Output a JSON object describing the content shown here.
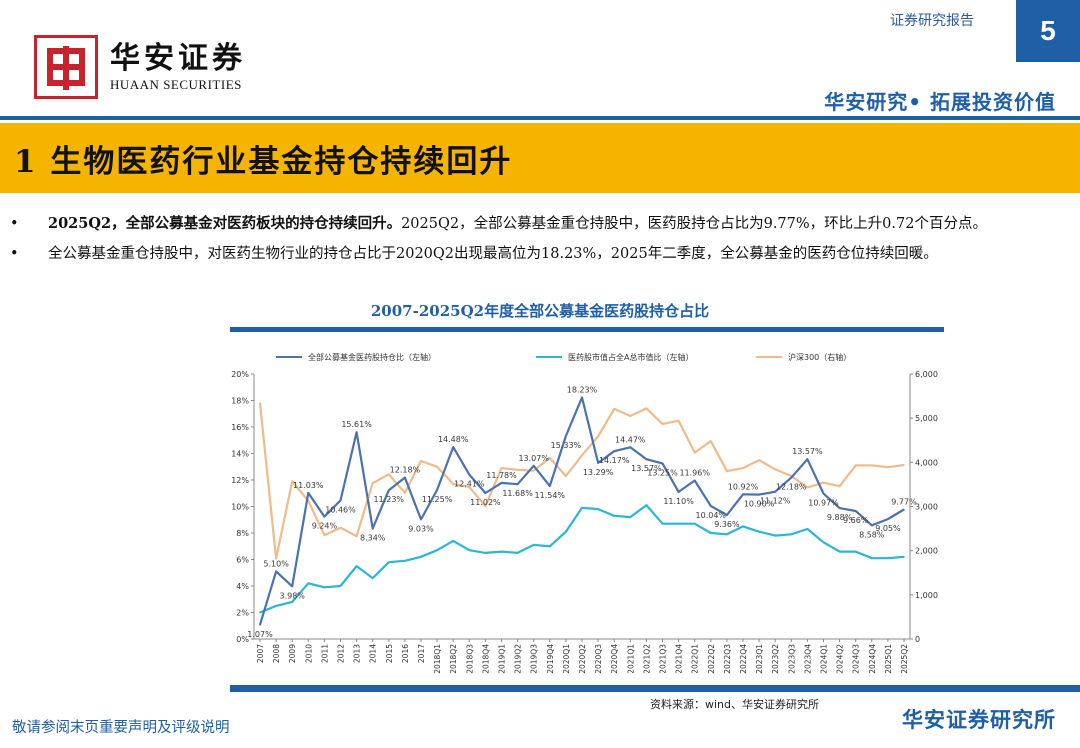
{
  "header": {
    "logo_cn": "华安证券",
    "logo_en": "HUAAN SECURITIES",
    "report_type": "证券研究报告",
    "page_number": "5",
    "slogan": "华安研究• 拓展投资价值"
  },
  "section_title": "1 生物医药行业基金持仓持续回升",
  "bullets": [
    {
      "bold": "2025Q2，全部公募基金对医药板块的持仓持续回升。",
      "text": "2025Q2，全部公募基金重仓持股中，医药股持仓占比为9.77%，环比上升0.72个百分点。"
    },
    {
      "bold": "",
      "text": "全公募基金重仓持股中，对医药生物行业的持仓占比于2020Q2出现最高位为18.23%，2025年二季度，全公募基金的医药仓位持续回暖。"
    }
  ],
  "footer": {
    "source": "资料来源：wind、华安证券研究所",
    "disclaimer": "敬请参阅末页重要声明及评级说明",
    "company": "华安证券研究所"
  },
  "colors": {
    "brand_blue": "#1f5fa5",
    "title_band": "#f5b400",
    "series1": "#4a72b0",
    "series2": "#2bb6d6",
    "series3": "#f2b98a",
    "logo_red": "#c8232c"
  },
  "chart_data": {
    "type": "line",
    "title": "2007-2025Q2年度全部公募基金医药股持仓占比",
    "categories": [
      "2007",
      "2008",
      "2009",
      "2010",
      "2011",
      "2012",
      "2013",
      "2014",
      "2015",
      "2016",
      "2017",
      "2018Q1",
      "2018Q2",
      "2018Q3",
      "2018Q4",
      "2019Q1",
      "2019Q2",
      "2019Q3",
      "2019Q4",
      "2020Q1",
      "2020Q2",
      "2020Q3",
      "2020Q4",
      "2021Q1",
      "2021Q2",
      "2021Q3",
      "2021Q4",
      "2022Q1",
      "2022Q2",
      "2022Q3",
      "2022Q4",
      "2023Q1",
      "2023Q2",
      "2023Q3",
      "2023Q4",
      "2024Q1",
      "2024Q2",
      "2024Q3",
      "2024Q4",
      "2025Q1",
      "2025Q2"
    ],
    "y_left": {
      "min": 0,
      "max": 20,
      "step": 2,
      "ticks": [
        "0%",
        "2%",
        "4%",
        "6%",
        "8%",
        "10%",
        "12%",
        "14%",
        "16%",
        "18%",
        "20%"
      ]
    },
    "y_right": {
      "min": 0,
      "max": 6000,
      "step": 1000,
      "ticks": [
        "0",
        "1,000",
        "2,000",
        "3,000",
        "4,000",
        "5,000",
        "6,000"
      ]
    },
    "series": [
      {
        "name": "全部公募基金医药股持仓比（左轴）",
        "axis": "left",
        "color": "#4a72b0",
        "values": [
          1.07,
          5.1,
          3.98,
          11.03,
          9.24,
          10.46,
          15.61,
          8.34,
          11.23,
          12.18,
          9.03,
          11.25,
          14.48,
          12.41,
          11.02,
          11.78,
          11.68,
          13.07,
          11.54,
          15.33,
          18.23,
          13.29,
          14.17,
          14.47,
          13.57,
          13.25,
          11.1,
          11.96,
          10.04,
          9.36,
          10.92,
          10.9,
          11.12,
          12.18,
          13.57,
          10.97,
          9.88,
          9.66,
          8.58,
          9.05,
          9.77
        ],
        "labels": [
          "1.07%",
          "5.10%",
          "3.98%",
          "11.03%",
          "9.24%",
          "10.46%",
          "15.61%",
          "8.34%",
          "11.23%",
          "12.18%",
          "9.03%",
          "11.25%",
          "14.48%",
          "12.41%",
          "11.02%",
          "11.78%",
          "11.68%",
          "13.07%",
          "11.54%",
          "15.33%",
          "18.23%",
          "13.29%",
          "14.17%",
          "14.47%",
          "13.57%",
          "13.25%",
          "11.10%",
          "11.96%",
          "10.04%",
          "9.36%",
          "10.92%",
          "10.90%",
          "11.12%",
          "12.18%",
          "13.57%",
          "10.97%",
          "9.88%",
          "9.66%",
          "8.58%",
          "9.05%",
          "9.77%"
        ]
      },
      {
        "name": "医药股市值占全A总市值比（左轴）",
        "axis": "left",
        "color": "#2bb6d6",
        "values": [
          2.0,
          2.5,
          2.8,
          4.2,
          3.9,
          4.0,
          5.5,
          4.6,
          5.8,
          5.9,
          6.2,
          6.7,
          7.4,
          6.7,
          6.5,
          6.6,
          6.5,
          7.1,
          7.0,
          8.1,
          9.9,
          9.8,
          9.3,
          9.2,
          10.1,
          8.7,
          8.7,
          8.7,
          8.0,
          7.9,
          8.5,
          8.1,
          7.8,
          7.9,
          8.3,
          7.3,
          6.6,
          6.6,
          6.1,
          6.1,
          6.2
        ]
      },
      {
        "name": "沪深300（右轴）",
        "axis": "right",
        "color": "#f2b98a",
        "values": [
          5340,
          1820,
          3570,
          3130,
          2350,
          2520,
          2330,
          3530,
          3730,
          3310,
          4030,
          3900,
          3510,
          3440,
          3010,
          3870,
          3830,
          3810,
          4100,
          3690,
          4160,
          4590,
          5210,
          5050,
          5220,
          4870,
          4940,
          4220,
          4480,
          3800,
          3870,
          4050,
          3840,
          3690,
          3430,
          3540,
          3460,
          3930,
          3930,
          3890,
          3940
        ]
      }
    ]
  }
}
